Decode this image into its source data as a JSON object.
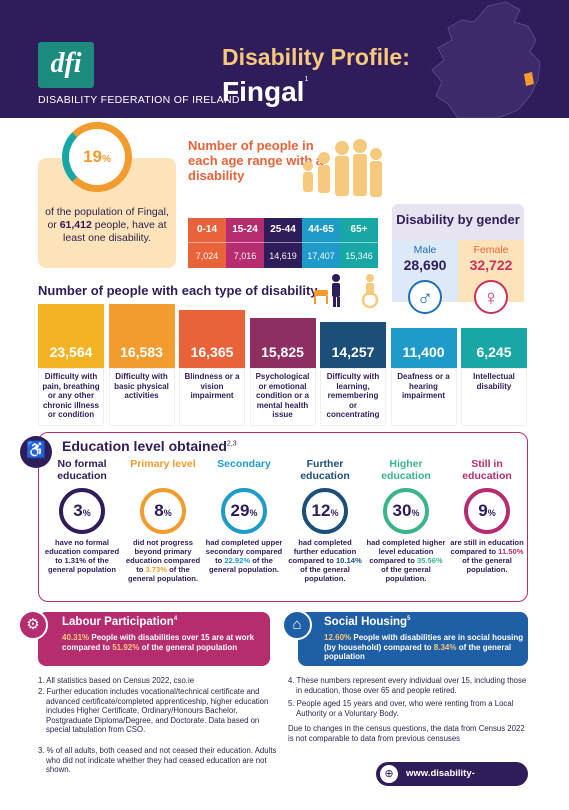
{
  "header": {
    "logo": "dfi",
    "org_name": "DISABILITY FEDERATION OF IRELAND",
    "title": "Disability Profile:",
    "county": "Fingal",
    "county_note": "1"
  },
  "summary": {
    "percent": "19",
    "percent_sign": "%",
    "text_1": "of the population of Fingal, or ",
    "count": "61,412",
    "text_2": " people, have at least one disability."
  },
  "age": {
    "title": "Number of people in each age range with a disability",
    "ranges": [
      {
        "label": "0-14",
        "value": "7,024",
        "color": "#e8633a"
      },
      {
        "label": "15-24",
        "value": "7,016",
        "color": "#b62d6f"
      },
      {
        "label": "25-44",
        "value": "14,619",
        "color": "#2f1c5a"
      },
      {
        "label": "44-65",
        "value": "17,407",
        "color": "#1f9bc9"
      },
      {
        "label": "65+",
        "value": "15,346",
        "color": "#19a7a6"
      }
    ]
  },
  "gender": {
    "title": "Disability by gender",
    "male_label": "Male",
    "male_value": "28,690",
    "female_label": "Female",
    "female_value": "32,722"
  },
  "types": {
    "title": "Number of people with each type of disability",
    "items": [
      {
        "value": "23,564",
        "label": "Difficulty with pain, breathing or any other chronic illness or condition",
        "color": "#f4b324"
      },
      {
        "value": "16,583",
        "label": "Difficulty with basic physical activities",
        "color": "#f29b2e"
      },
      {
        "value": "16,365",
        "label": "Blindness or a vision impairment",
        "color": "#e8633a"
      },
      {
        "value": "15,825",
        "label": "Psychological or emotional condition or a mental health issue",
        "color": "#8e2f62"
      },
      {
        "value": "14,257",
        "label": "Difficulty with learning, remembering or concentrating",
        "color": "#1c4e7a"
      },
      {
        "value": "11,400",
        "label": "Deafness or a hearing impairment",
        "color": "#1f9bc9"
      },
      {
        "value": "6,245",
        "label": "Intellectual disability",
        "color": "#19a7a6"
      }
    ]
  },
  "education": {
    "title": "Education level obtained",
    "title_note": "2,3",
    "levels": [
      {
        "heading": "No formal education",
        "value": "3",
        "d1": "have no formal education compared to ",
        "cmp": "1.31%",
        "d2": " of the general population",
        "color": "#2f1c5a"
      },
      {
        "heading": "Primary level",
        "value": "8",
        "d1": "did not progress beyond primary education compared to ",
        "cmp": "3.73%",
        "d2": " of the general population.",
        "color": "#f29b2e"
      },
      {
        "heading": "Secondary",
        "value": "29",
        "d1": "had completed upper secondary compared to ",
        "cmp": "22.92%",
        "d2": " of the general population.",
        "color": "#1f9bc9"
      },
      {
        "heading": "Further education",
        "value": "12",
        "d1": "had completed further education compared to ",
        "cmp": "10.14%",
        "d2": " of the general population.",
        "color": "#1c4e7a"
      },
      {
        "heading": "Higher education",
        "value": "30",
        "d1": "had completed higher level education compared to ",
        "cmp": "35.56%",
        "d2": " of the general population.",
        "color": "#3bb48e"
      },
      {
        "heading": "Still in education",
        "value": "9",
        "d1": "are still in education compared to ",
        "cmp": "11.50%",
        "d2": " of the general population.",
        "color": "#b62d6f"
      }
    ]
  },
  "labour": {
    "title": "Labour Participation",
    "note": "4",
    "pct": "40.31%",
    "text_1": " People with disabilities over 15 are at work compared to ",
    "cmp": "51.92%",
    "text_2": " of the general population"
  },
  "housing": {
    "title": "Social Housing",
    "note": "5",
    "pct": "12.60%",
    "text_1": " People with disabilities are in social housing (by household) compared to ",
    "cmp": "8.34%",
    "text_2": " of the general population"
  },
  "footnotes": {
    "left": [
      "1. All statistics based on Census 2022, cso.ie",
      "2. Further education includes vocational/technical certificate and advanced certificate/completed apprenticeship, higher education includes Higher Certificate, Ordinary/Honours Bachelor, Postgraduate Diploma/Degree, and Doctorate. Data based on special tabulation from CSO.",
      "3. % of all adults, both ceased and not ceased their education. Adults who did not indicate whether they had ceased education are not shown."
    ],
    "right": [
      "4. These numbers represent every individual over 15, including those in education, those over 65 and people retired.",
      "5. People aged 15 years and over, who were renting from a Local Authority or a Voluntary Body."
    ],
    "change_note": "Due to changes in the census questions, the data from Census 2022 is not comparable to data from previous censuses"
  },
  "website": "www.disability-federation.ie",
  "colors": {
    "navy": "#2f1c5a",
    "magenta": "#b62d6f",
    "orange": "#f29b2e",
    "teal": "#19a7a6",
    "blue": "#1f5fa5"
  },
  "icons": [
    "globe-icon",
    "male-symbol-icon",
    "female-symbol-icon",
    "wheelchair-icon",
    "house-icon",
    "people-icon"
  ]
}
